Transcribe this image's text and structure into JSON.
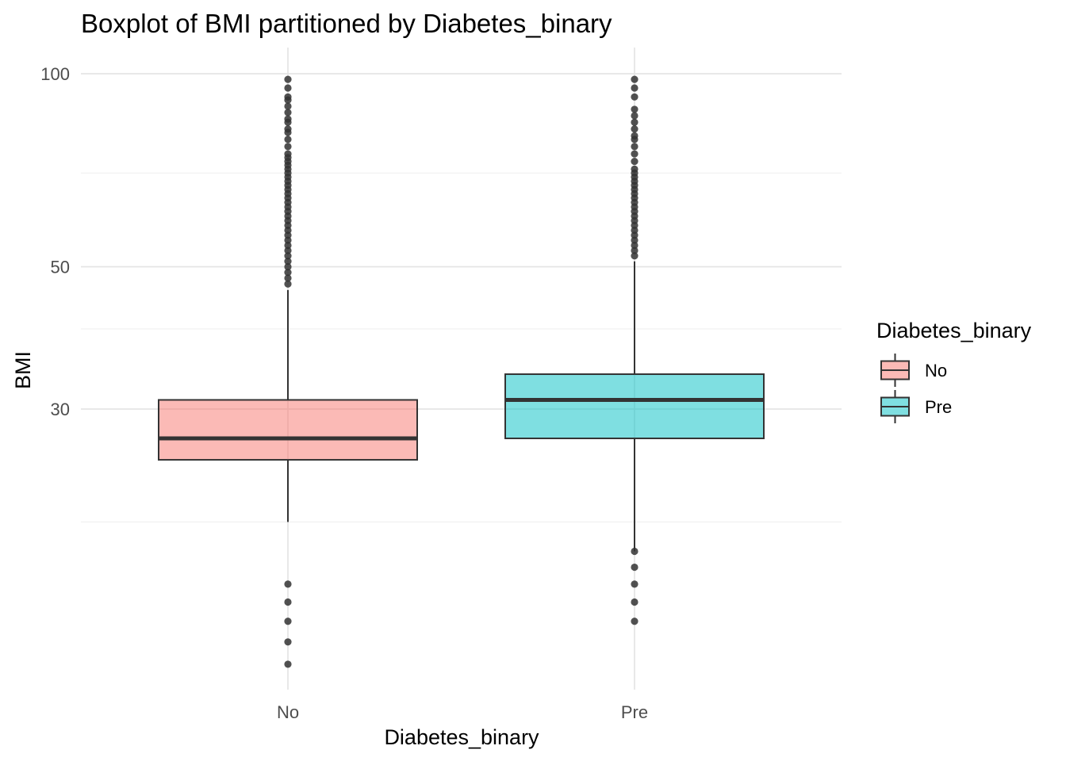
{
  "chart_data": {
    "type": "boxplot",
    "title": "Boxplot of BMI partitioned by Diabetes_binary",
    "xlabel": "Diabetes_binary",
    "ylabel": "BMI",
    "y_scale": "log10",
    "ylim": [
      12,
      100
    ],
    "y_ticks": [
      {
        "value": 100,
        "label": "100"
      },
      {
        "value": 50,
        "label": "50"
      },
      {
        "value": 30,
        "label": "30"
      }
    ],
    "y_minor_grid": [
      70,
      40,
      20
    ],
    "grid": true,
    "categories": [
      "No",
      "Pre"
    ],
    "boxes": [
      {
        "category": "No",
        "color": "#f8766d",
        "whisker_low": 20,
        "q1": 25,
        "median": 27,
        "q3": 31,
        "whisker_high": 46,
        "outliers": [
          12,
          13,
          14,
          15,
          16,
          47,
          48,
          49,
          50,
          51,
          52,
          53,
          54,
          55,
          56,
          57,
          58,
          59,
          60,
          61,
          62,
          63,
          64,
          65,
          66,
          67,
          68,
          69,
          70,
          71,
          72,
          73,
          74,
          75,
          77,
          79,
          81,
          82,
          84,
          85,
          87,
          89,
          91,
          92,
          95,
          98
        ]
      },
      {
        "category": "Pre",
        "color": "#00bfc4",
        "whisker_low": 18,
        "q1": 27,
        "median": 31,
        "q3": 34,
        "whisker_high": 51,
        "outliers": [
          14,
          15,
          16,
          17,
          18,
          52,
          53,
          54,
          55,
          56,
          57,
          58,
          59,
          60,
          61,
          62,
          63,
          64,
          65,
          66,
          67,
          68,
          69,
          70,
          71,
          73,
          75,
          77,
          79,
          80,
          82,
          84,
          86,
          88,
          92,
          95,
          98
        ]
      }
    ],
    "legend": {
      "title": "Diabetes_binary",
      "placement": "right",
      "entries": [
        "No",
        "Pre"
      ]
    }
  }
}
